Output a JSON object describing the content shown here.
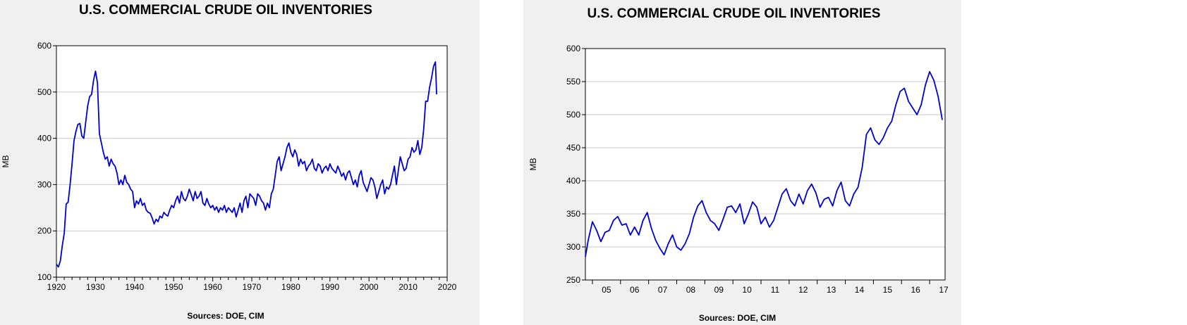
{
  "chart_data": [
    {
      "type": "line",
      "title": "U.S. COMMERCIAL CRUDE OIL INVENTORIES",
      "ylabel": "MB",
      "source": "Sources:  DOE, CIM",
      "xlim": [
        1920,
        2020
      ],
      "ylim": [
        100,
        600
      ],
      "xticks": [
        "1920",
        "1930",
        "1940",
        "1950",
        "1960",
        "1970",
        "1980",
        "1990",
        "2000",
        "2010",
        "2020"
      ],
      "yticks": [
        "100",
        "200",
        "300",
        "400",
        "500",
        "600"
      ],
      "grid": true,
      "line_color": "#0000cc",
      "series": [
        {
          "x": [
            1920,
            1920.5,
            1921,
            1921.5,
            1922,
            1922.5,
            1923,
            1923.5,
            1924,
            1924.5,
            1925,
            1925.5,
            1926,
            1926.5,
            1927,
            1927.5,
            1928,
            1928.5,
            1929,
            1929.5,
            1930,
            1930.5,
            1931,
            1931.5,
            1932,
            1932.5,
            1933,
            1933.5,
            1934,
            1934.5,
            1935,
            1935.5,
            1936,
            1936.5,
            1937,
            1937.5,
            1938,
            1938.5,
            1939,
            1939.5,
            1940,
            1940.5,
            1941,
            1941.5,
            1942,
            1942.5,
            1943,
            1943.5,
            1944,
            1944.5,
            1945,
            1945.5,
            1946,
            1946.5,
            1947,
            1947.5,
            1948,
            1948.5,
            1949,
            1949.5,
            1950,
            1950.5,
            1951,
            1951.5,
            1952,
            1952.5,
            1953,
            1953.5,
            1954,
            1954.5,
            1955,
            1955.5,
            1956,
            1956.5,
            1957,
            1957.5,
            1958,
            1958.5,
            1959,
            1959.5,
            1960,
            1960.5,
            1961,
            1961.5,
            1962,
            1962.5,
            1963,
            1963.5,
            1964,
            1964.5,
            1965,
            1965.5,
            1966,
            1966.5,
            1967,
            1967.5,
            1968,
            1968.5,
            1969,
            1969.5,
            1970,
            1970.5,
            1971,
            1971.5,
            1972,
            1972.5,
            1973,
            1973.5,
            1974,
            1974.5,
            1975,
            1975.5,
            1976,
            1976.5,
            1977,
            1977.5,
            1978,
            1978.5,
            1979,
            1979.5,
            1980,
            1980.5,
            1981,
            1981.5,
            1982,
            1982.5,
            1983,
            1983.5,
            1984,
            1984.5,
            1985,
            1985.5,
            1986,
            1986.5,
            1987,
            1987.5,
            1988,
            1988.5,
            1989,
            1989.5,
            1990,
            1990.5,
            1991,
            1991.5,
            1992,
            1992.5,
            1993,
            1993.5,
            1994,
            1994.5,
            1995,
            1995.5,
            1996,
            1996.5,
            1997,
            1997.5,
            1998,
            1998.5,
            1999,
            1999.5,
            2000,
            2000.5,
            2001,
            2001.5,
            2002,
            2002.5,
            2003,
            2003.5,
            2004,
            2004.5,
            2005,
            2005.5,
            2006,
            2006.5,
            2007,
            2007.5,
            2008,
            2008.5,
            2009,
            2009.5,
            2010,
            2010.5,
            2011,
            2011.5,
            2012,
            2012.5,
            2013,
            2013.5,
            2014,
            2014.5,
            2015,
            2015.5,
            2016,
            2016.5,
            2017,
            2017.3
          ],
          "y": [
            128,
            122,
            135,
            168,
            195,
            258,
            262,
            300,
            345,
            395,
            415,
            430,
            432,
            405,
            400,
            435,
            470,
            490,
            495,
            525,
            545,
            520,
            410,
            390,
            370,
            355,
            360,
            340,
            355,
            345,
            340,
            325,
            300,
            310,
            300,
            320,
            305,
            300,
            290,
            285,
            250,
            265,
            258,
            270,
            255,
            260,
            245,
            240,
            238,
            228,
            215,
            225,
            220,
            232,
            228,
            240,
            235,
            232,
            245,
            255,
            250,
            265,
            275,
            260,
            285,
            270,
            265,
            275,
            290,
            278,
            265,
            285,
            270,
            275,
            285,
            260,
            255,
            270,
            258,
            250,
            255,
            245,
            252,
            240,
            250,
            245,
            255,
            240,
            250,
            245,
            240,
            250,
            230,
            245,
            260,
            240,
            265,
            275,
            250,
            280,
            275,
            270,
            255,
            280,
            275,
            265,
            260,
            245,
            260,
            250,
            280,
            290,
            320,
            350,
            360,
            330,
            345,
            360,
            380,
            390,
            370,
            360,
            375,
            365,
            340,
            355,
            345,
            350,
            330,
            340,
            345,
            355,
            335,
            330,
            345,
            340,
            325,
            335,
            340,
            330,
            345,
            335,
            330,
            325,
            340,
            330,
            318,
            325,
            310,
            325,
            330,
            315,
            300,
            310,
            295,
            320,
            330,
            305,
            295,
            285,
            300,
            315,
            310,
            295,
            270,
            285,
            300,
            310,
            280,
            295,
            290,
            300,
            320,
            340,
            300,
            330,
            360,
            345,
            330,
            335,
            355,
            360,
            380,
            370,
            375,
            395,
            365,
            380,
            420,
            480,
            480,
            510,
            530,
            555,
            565,
            495
          ]
        }
      ]
    },
    {
      "type": "line",
      "title": "U.S. COMMERCIAL CRUDE OIL INVENTORIES",
      "ylabel": "MB",
      "source": "Sources:  DOE, CIM",
      "ylim": [
        250,
        600
      ],
      "xticks": [
        "05",
        "06",
        "07",
        "08",
        "09",
        "10",
        "11",
        "12",
        "13",
        "14",
        "15",
        "16",
        "17"
      ],
      "yticks": [
        "250",
        "300",
        "350",
        "400",
        "450",
        "500",
        "550",
        "600"
      ],
      "grid": true,
      "line_color": "#0000cc",
      "series": [
        {
          "x": [
            2004.75,
            2004.85,
            2005.0,
            2005.15,
            2005.3,
            2005.45,
            2005.6,
            2005.75,
            2005.9,
            2006.05,
            2006.2,
            2006.35,
            2006.5,
            2006.65,
            2006.8,
            2006.95,
            2007.1,
            2007.25,
            2007.4,
            2007.55,
            2007.7,
            2007.85,
            2008.0,
            2008.15,
            2008.3,
            2008.45,
            2008.6,
            2008.75,
            2008.9,
            2009.05,
            2009.2,
            2009.35,
            2009.5,
            2009.65,
            2009.8,
            2009.95,
            2010.1,
            2010.25,
            2010.4,
            2010.55,
            2010.7,
            2010.85,
            2011.0,
            2011.15,
            2011.3,
            2011.45,
            2011.6,
            2011.75,
            2011.9,
            2012.05,
            2012.2,
            2012.35,
            2012.5,
            2012.65,
            2012.8,
            2012.95,
            2013.1,
            2013.25,
            2013.4,
            2013.55,
            2013.7,
            2013.85,
            2014.0,
            2014.15,
            2014.3,
            2014.45,
            2014.6,
            2014.75,
            2014.9,
            2015.05,
            2015.2,
            2015.35,
            2015.5,
            2015.65,
            2015.8,
            2015.95,
            2016.1,
            2016.25,
            2016.4,
            2016.55,
            2016.7,
            2016.85,
            2017.0,
            2017.15,
            2017.3,
            2017.45
          ],
          "y": [
            285,
            310,
            338,
            325,
            308,
            322,
            325,
            340,
            346,
            333,
            335,
            318,
            330,
            318,
            340,
            352,
            328,
            310,
            298,
            288,
            305,
            318,
            300,
            295,
            305,
            320,
            345,
            362,
            370,
            352,
            340,
            335,
            325,
            342,
            360,
            362,
            352,
            365,
            335,
            350,
            368,
            360,
            335,
            345,
            330,
            340,
            360,
            380,
            388,
            370,
            362,
            380,
            365,
            385,
            395,
            382,
            360,
            372,
            375,
            362,
            385,
            398,
            370,
            362,
            380,
            390,
            420,
            470,
            480,
            462,
            455,
            465,
            480,
            490,
            515,
            535,
            540,
            520,
            510,
            500,
            515,
            545,
            565,
            552,
            528,
            492
          ]
        }
      ]
    }
  ]
}
